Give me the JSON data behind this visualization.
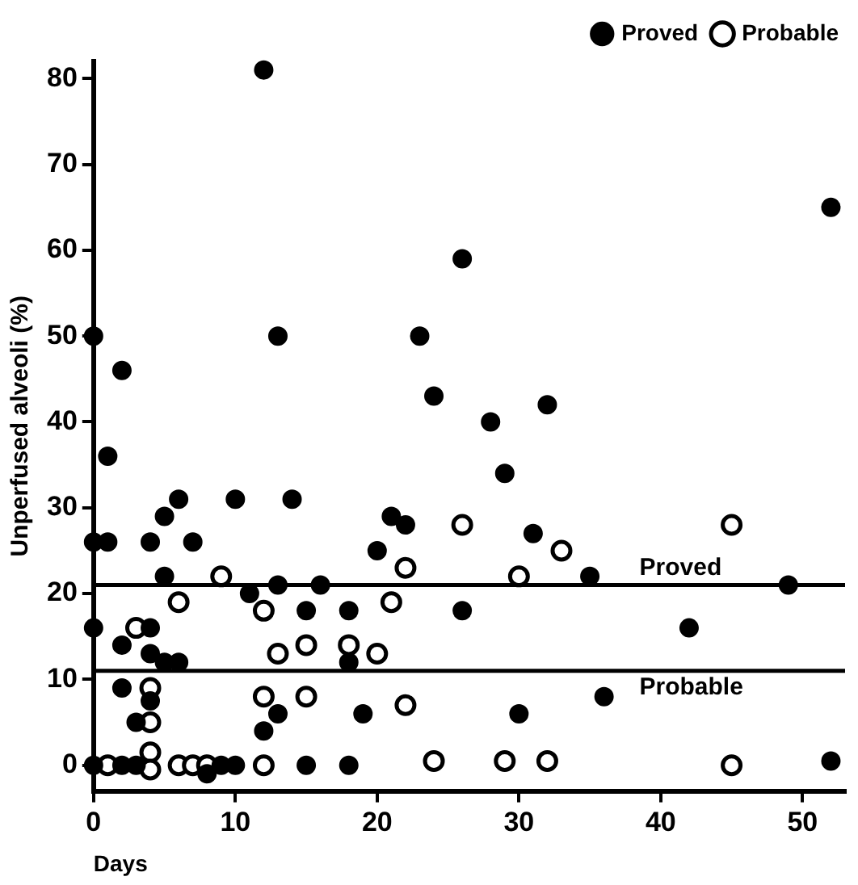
{
  "chart_data": {
    "type": "scatter",
    "xlabel": "Days",
    "ylabel": "Unperfused alveoli (%)",
    "xlim": [
      0,
      53
    ],
    "xticks": [
      0,
      10,
      20,
      30,
      40,
      50
    ],
    "ylim": [
      -3,
      82
    ],
    "yticks": [
      0,
      10,
      20,
      30,
      40,
      50,
      60,
      70,
      80
    ],
    "grid": false,
    "legend": "top right",
    "series": [
      {
        "name": "Proved",
        "color": "#000000",
        "marker": "circle",
        "x": [
          0,
          13,
          2,
          12,
          26,
          23,
          24,
          32,
          28,
          1,
          6,
          10,
          14,
          5,
          0,
          1,
          4,
          7,
          5,
          11,
          13,
          16,
          15,
          0,
          2,
          4,
          4,
          5,
          6,
          2,
          3,
          4,
          12,
          13,
          15,
          0,
          2,
          3,
          8,
          9,
          10,
          29,
          21,
          22,
          20,
          31,
          18,
          26,
          18,
          19,
          30,
          18,
          35,
          49,
          42,
          36,
          52,
          52
        ],
        "values": [
          50,
          50,
          46,
          81,
          59,
          50,
          43,
          42,
          40,
          36,
          31,
          31,
          31,
          29,
          26,
          26,
          26,
          26,
          22,
          20,
          21,
          21,
          18,
          16,
          14,
          16,
          13,
          12,
          12,
          9,
          5,
          7.5,
          4,
          6,
          0,
          0,
          0,
          0,
          -1,
          0,
          0,
          34,
          29,
          28,
          25,
          27,
          18,
          18,
          12,
          6,
          6,
          0,
          22,
          21,
          16,
          8,
          0.5,
          65
        ]
      },
      {
        "name": "Probable",
        "color": "#000000",
        "marker": "circle",
        "x": [
          9,
          6,
          12,
          15,
          3,
          13,
          4,
          4,
          12,
          15,
          1,
          4,
          4,
          6,
          7,
          8,
          12,
          26,
          33,
          22,
          30,
          21,
          18,
          20,
          22,
          24,
          29,
          32,
          45,
          45
        ],
        "values": [
          22,
          19,
          18,
          14,
          16,
          13,
          9,
          5,
          8,
          8,
          0,
          1.5,
          -0.5,
          0,
          0,
          0,
          0,
          28,
          25,
          23,
          22,
          19,
          14,
          13,
          7,
          0.5,
          0.5,
          0.5,
          28,
          0
        ]
      }
    ],
    "ref_lines": [
      {
        "axis": "y",
        "value": 21,
        "label": "Proved"
      },
      {
        "axis": "y",
        "value": 11,
        "label": "Probable"
      }
    ]
  }
}
